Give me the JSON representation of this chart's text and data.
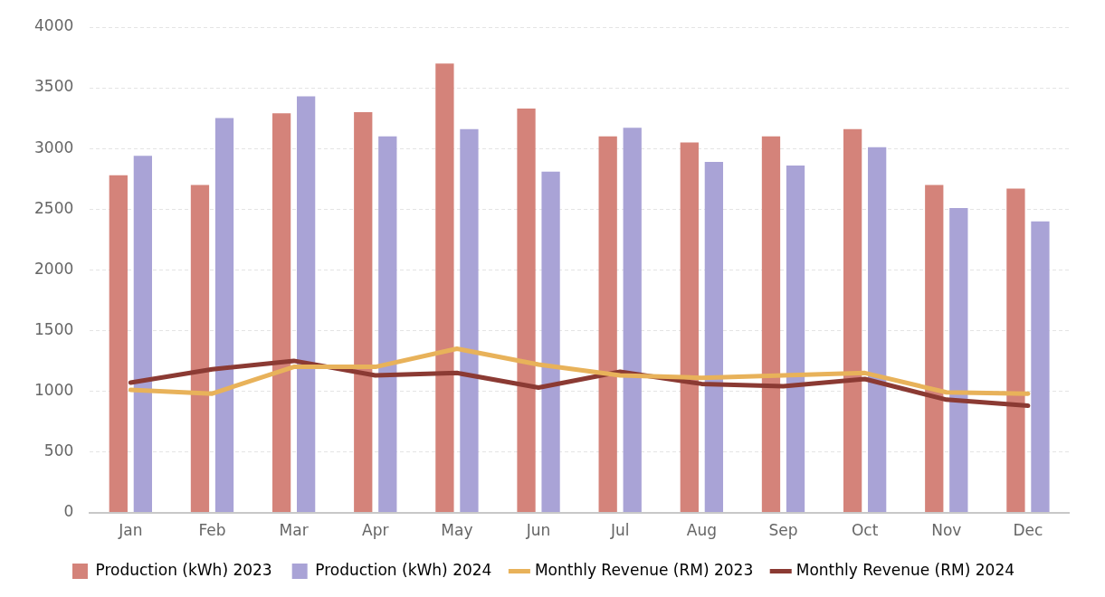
{
  "chart_data": {
    "type": "bar",
    "categories": [
      "Jan",
      "Feb",
      "Mar",
      "Apr",
      "May",
      "Jun",
      "Jul",
      "Aug",
      "Sep",
      "Oct",
      "Nov",
      "Dec"
    ],
    "series": [
      {
        "name": "Production (kWh) 2023",
        "color": "#d4837a",
        "values": [
          2780,
          2700,
          3290,
          3300,
          3700,
          3330,
          3100,
          3050,
          3100,
          3160,
          2700,
          2670
        ]
      },
      {
        "name": "Production (kWh) 2024",
        "color": "#a9a3d6",
        "values": [
          2940,
          3250,
          3430,
          3100,
          3160,
          2810,
          3170,
          2890,
          2860,
          3010,
          2510,
          2400
        ]
      },
      {
        "name": "Monthly Revenue (RM) 2023",
        "type": "line",
        "color": "#e8b25a",
        "values": [
          1010,
          980,
          1200,
          1200,
          1350,
          1220,
          1130,
          1110,
          1130,
          1150,
          990,
          980
        ]
      },
      {
        "name": "Monthly Revenue (RM) 2024",
        "type": "line",
        "color": "#8b3a33",
        "values": [
          1070,
          1180,
          1250,
          1130,
          1150,
          1030,
          1160,
          1060,
          1040,
          1100,
          930,
          880
        ]
      }
    ],
    "ylim": [
      0,
      4000
    ],
    "yticks": [
      0,
      500,
      1000,
      1500,
      2000,
      2500,
      3000,
      3500,
      4000
    ],
    "grid": "y",
    "legend": "bottom",
    "marker": "none",
    "line_style": "solid"
  }
}
